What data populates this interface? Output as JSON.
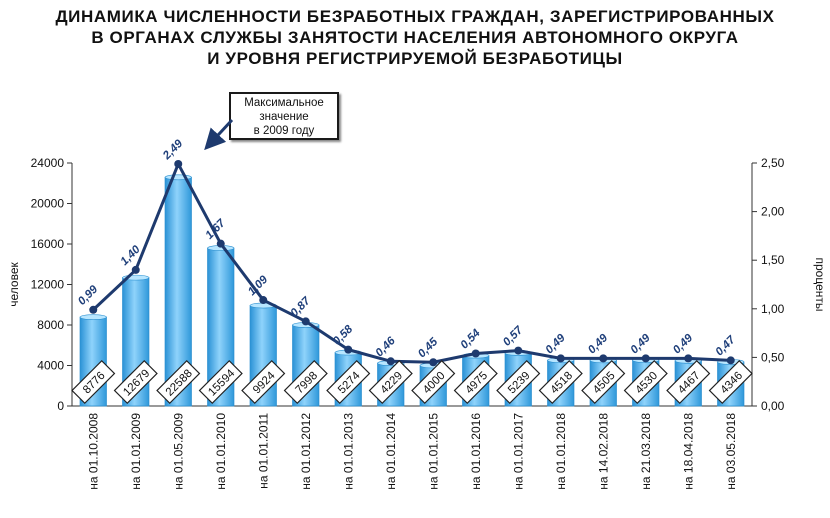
{
  "title": {
    "line1": "ДИНАМИКА ЧИСЛЕННОСТИ БЕЗРАБОТНЫХ ГРАЖДАН, ЗАРЕГИСТРИРОВАННЫХ",
    "line2": "В ОРГАНАХ СЛУЖБЫ ЗАНЯТОСТИ НАСЕЛЕНИЯ АВТОНОМНОГО ОКРУГА",
    "line3": "И УРОВНЯ РЕГИСТРИРУЕМОЙ БЕЗРАБОТИЦЫ"
  },
  "callout": {
    "line1": "Максимальное",
    "line2": "значение",
    "line3": "в 2009 году"
  },
  "colors": {
    "bar_fill": "#5bb8ee",
    "bar_edge": "#2a8fd0",
    "line": "#1e3a6e",
    "label_text": "#1f3f7a"
  },
  "chart_data": {
    "type": "bar",
    "categories": [
      "на 01.10.2008",
      "на 01.01.2009",
      "на 01.05.2009",
      "на 01.01.2010",
      "на 01.01.2011",
      "на 01.01.2012",
      "на 01.01.2013",
      "на 01.01.2014",
      "на 01.01.2015",
      "на 01.01.2016",
      "на 01.01.2017",
      "на 01.01.2018",
      "на 14.02.2018",
      "на 21.03.2018",
      "на 18.04.2018",
      "на 03.05.2018"
    ],
    "series": [
      {
        "type": "bar",
        "axis": "left",
        "values": [
          8776,
          12679,
          22588,
          15594,
          9924,
          7998,
          5274,
          4229,
          4000,
          4975,
          5239,
          4518,
          4505,
          4530,
          4467,
          4346
        ],
        "labels": [
          "8776",
          "12679",
          "22588",
          "15594",
          "9924",
          "7998",
          "5274",
          "4229",
          "4000",
          "4975",
          "5239",
          "4518",
          "4505",
          "4530",
          "4467",
          "4346"
        ]
      },
      {
        "type": "line",
        "axis": "right",
        "values": [
          0.99,
          1.4,
          2.49,
          1.67,
          1.09,
          0.87,
          0.58,
          0.46,
          0.45,
          0.54,
          0.57,
          0.49,
          0.49,
          0.49,
          0.49,
          0.47
        ],
        "labels": [
          "0,99",
          "1,40",
          "2,49",
          "1,67",
          "1,09",
          "0,87",
          "0,58",
          "0,46",
          "0,45",
          "0,54",
          "0,57",
          "0,49",
          "0,49",
          "0,49",
          "0,49",
          "0,47"
        ]
      }
    ],
    "ylabel": "человек",
    "ylabel_right": "проценты",
    "ylim": [
      0,
      24000
    ],
    "ylim_right": [
      0,
      2.5
    ],
    "yticks": [
      "0",
      "4000",
      "8000",
      "12000",
      "16000",
      "20000",
      "24000"
    ],
    "yticks_right": [
      "0,00",
      "0,50",
      "1,00",
      "1,50",
      "2,00",
      "2,50"
    ],
    "grid": false,
    "legend": "none"
  }
}
